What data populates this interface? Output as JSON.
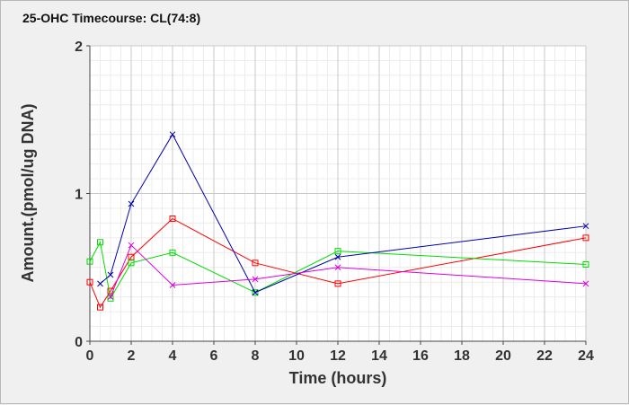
{
  "chart_data": {
    "type": "line",
    "title": "25-OHC Timecourse: CL(74:8)",
    "xlabel": "Time (hours)",
    "ylabel": "Amount.(pmol/ug DNA)",
    "xlim": [
      0,
      24
    ],
    "ylim": [
      0,
      2
    ],
    "x_ticks": [
      0,
      2,
      4,
      6,
      8,
      10,
      12,
      14,
      16,
      18,
      20,
      22,
      24
    ],
    "y_ticks": [
      0,
      1,
      2
    ],
    "grid": true,
    "legend": "none",
    "series": [
      {
        "color": "#ff0000",
        "marker": "square",
        "points": [
          [
            0,
            0.4
          ],
          [
            0.5,
            0.23
          ],
          [
            1,
            0.34
          ],
          [
            2,
            0.57
          ],
          [
            4,
            0.83
          ],
          [
            8,
            0.53
          ],
          [
            12,
            0.39
          ],
          [
            24,
            0.7
          ]
        ]
      },
      {
        "color": "#00dd00",
        "marker": "square",
        "points": [
          [
            0,
            0.54
          ],
          [
            0.5,
            0.67
          ],
          [
            1,
            0.29
          ],
          [
            2,
            0.53
          ],
          [
            4,
            0.6
          ],
          [
            8,
            0.33
          ],
          [
            12,
            0.61
          ],
          [
            24,
            0.52
          ]
        ]
      },
      {
        "color": "#0000aa",
        "marker": "x",
        "points": [
          [
            0.5,
            0.39
          ],
          [
            1,
            0.45
          ],
          [
            2,
            0.93
          ],
          [
            4,
            1.4
          ],
          [
            8,
            0.33
          ],
          [
            12,
            0.57
          ],
          [
            24,
            0.78
          ]
        ]
      },
      {
        "color": "#dd00dd",
        "marker": "x",
        "points": [
          [
            1,
            0.3
          ],
          [
            2,
            0.65
          ],
          [
            4,
            0.38
          ],
          [
            8,
            0.42
          ],
          [
            12,
            0.5
          ],
          [
            24,
            0.39
          ]
        ]
      }
    ]
  }
}
